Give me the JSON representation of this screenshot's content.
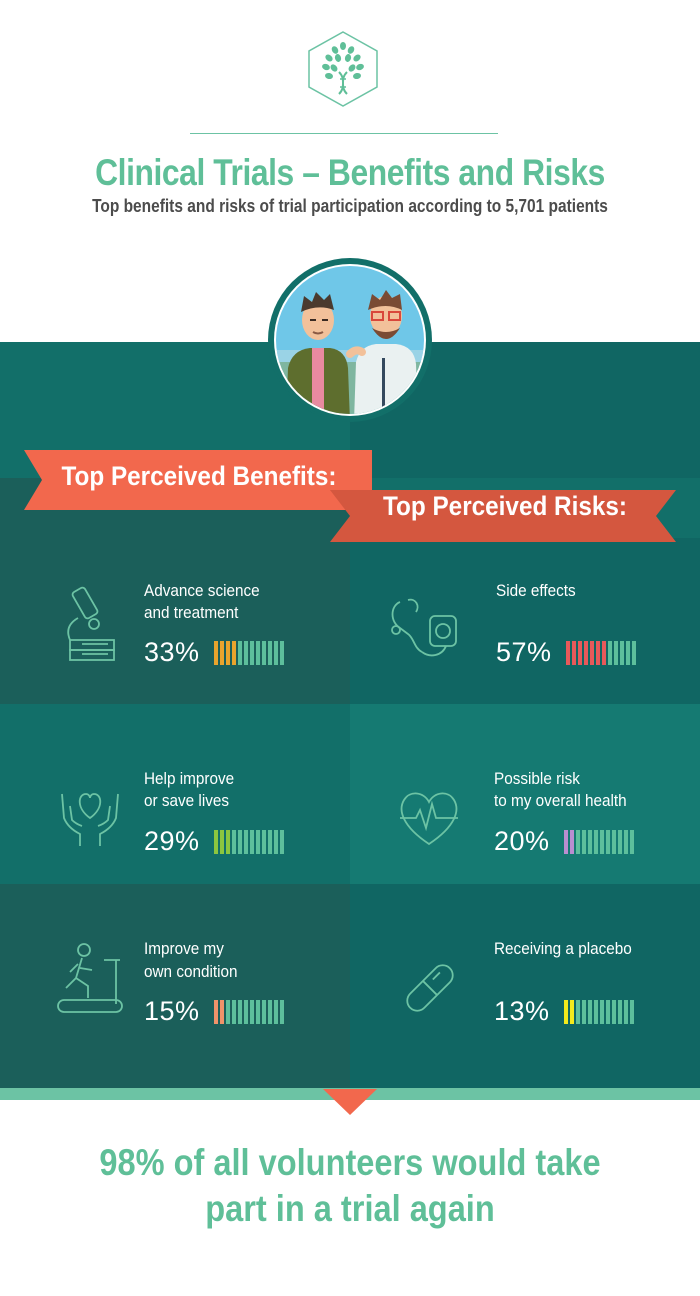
{
  "header": {
    "title": "Clinical Trials – Benefits and Risks",
    "subtitle": "Top benefits and risks of trial participation according to 5,701 patients"
  },
  "banners": {
    "benefits": "Top Perceived Benefits:",
    "risks": "Top Perceived Risks:"
  },
  "benefits": [
    {
      "label_line1": "Advance science",
      "label_line2": "and treatment",
      "percent": "33%",
      "value": 33,
      "icon": "microscope-icon",
      "color": "#e9a42d"
    },
    {
      "label_line1": "Help improve",
      "label_line2": "or save lives",
      "percent": "29%",
      "value": 29,
      "icon": "heart-in-hands-icon",
      "color": "#8cc63f"
    },
    {
      "label_line1": "Improve my",
      "label_line2": "own condition",
      "percent": "15%",
      "value": 15,
      "icon": "treadmill-runner-icon",
      "color": "#f0936a"
    }
  ],
  "risks": [
    {
      "label_line1": "Side effects",
      "label_line2": "",
      "percent": "57%",
      "value": 57,
      "icon": "stethoscope-icon",
      "color": "#e8595a"
    },
    {
      "label_line1": "Possible risk",
      "label_line2": "to my overall health",
      "percent": "20%",
      "value": 20,
      "icon": "heartbeat-icon",
      "color": "#b98ed0"
    },
    {
      "label_line1": "Receiving a placebo",
      "label_line2": "",
      "percent": "13%",
      "value": 13,
      "icon": "pill-capsule-icon",
      "color": "#f3ea1c"
    }
  ],
  "meter_base_color": "#5dbf9c",
  "conclusion": {
    "line1": "98% of all volunteers would take",
    "line2": "part in a trial again"
  },
  "colors": {
    "accent_green": "#5fbf98",
    "banner_orange": "#f2684d",
    "banner_dark_orange": "#d4573f",
    "teal_dark": "#126f69"
  }
}
